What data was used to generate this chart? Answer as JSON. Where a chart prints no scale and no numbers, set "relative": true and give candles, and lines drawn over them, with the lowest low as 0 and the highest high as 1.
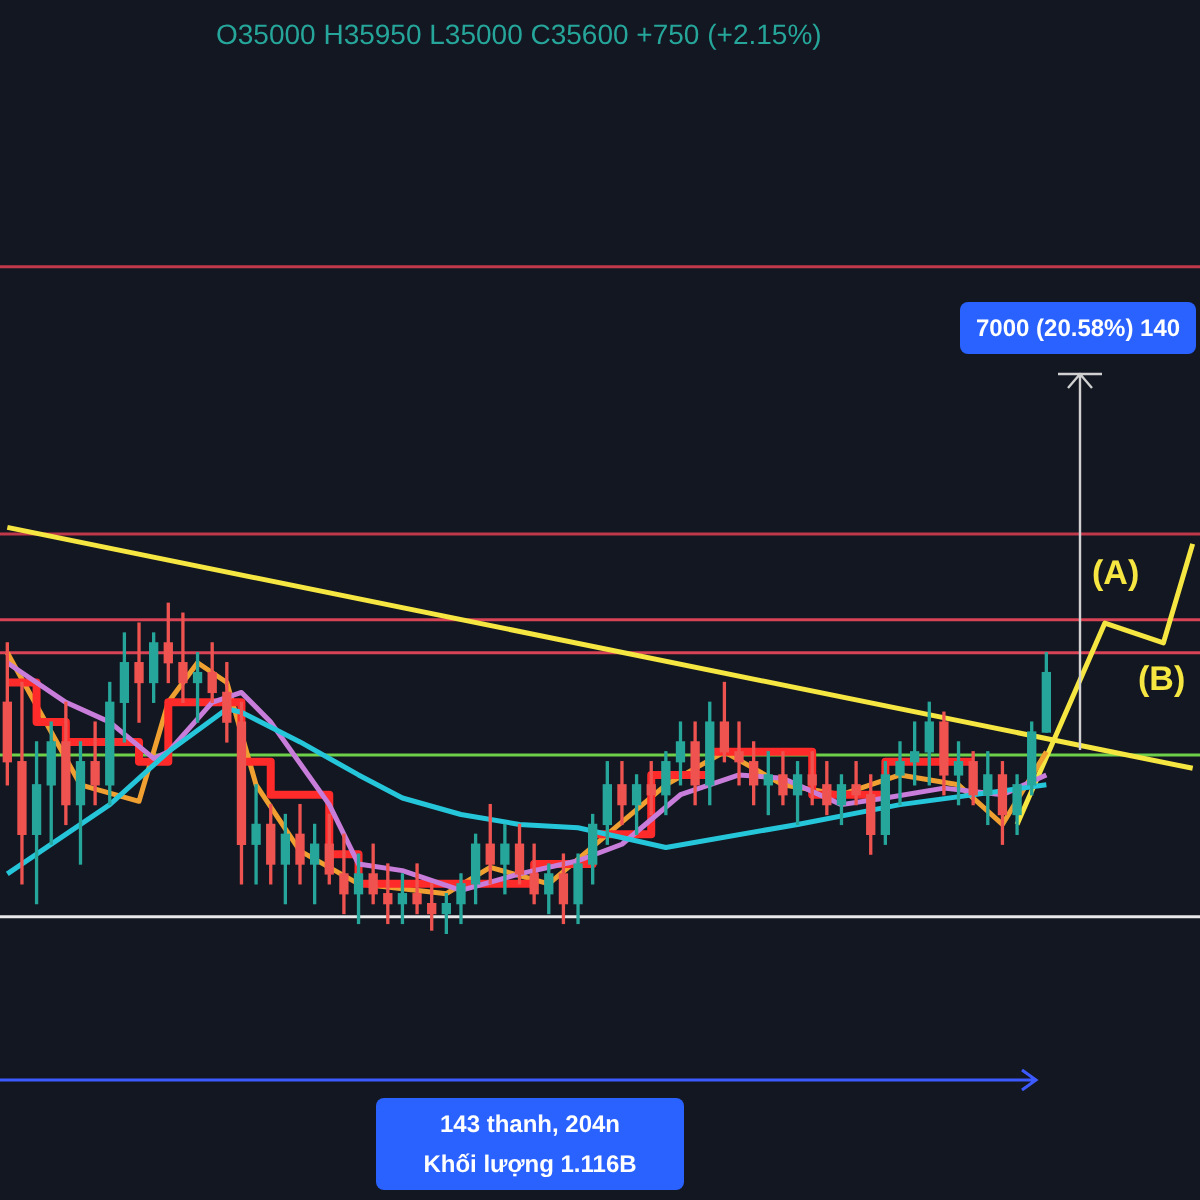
{
  "chart_data": {
    "type": "candlestick",
    "relative": true,
    "tick_labels": false,
    "legend": false,
    "categories": [
      null,
      null,
      null,
      null,
      null,
      null,
      null,
      null,
      null,
      null,
      null,
      null,
      null,
      null,
      null,
      null,
      null,
      null,
      null,
      null,
      null,
      null,
      null,
      null,
      null,
      null,
      null,
      null,
      null,
      null,
      null,
      null,
      null,
      null,
      null,
      null,
      null,
      null,
      null,
      null,
      null,
      null,
      null,
      null,
      null,
      null,
      null,
      null,
      null,
      null,
      null,
      null,
      null,
      null,
      null,
      null,
      null,
      null,
      null,
      null,
      null,
      null,
      null,
      null,
      null,
      null,
      null,
      null,
      null,
      null,
      null,
      null,
      null,
      null,
      null,
      null,
      null,
      null,
      null,
      null,
      null,
      null
    ],
    "ohlc": [
      [
        0.7,
        0.88,
        0.45,
        0.52
      ],
      [
        0.52,
        0.76,
        0.15,
        0.3
      ],
      [
        0.3,
        0.58,
        0.09,
        0.45
      ],
      [
        0.45,
        0.64,
        0.27,
        0.58
      ],
      [
        0.58,
        0.7,
        0.33,
        0.39
      ],
      [
        0.39,
        0.58,
        0.21,
        0.52
      ],
      [
        0.52,
        0.64,
        0.39,
        0.45
      ],
      [
        0.45,
        0.76,
        0.39,
        0.7
      ],
      [
        0.7,
        0.91,
        0.58,
        0.82
      ],
      [
        0.82,
        0.94,
        0.64,
        0.76
      ],
      [
        0.76,
        0.91,
        0.7,
        0.88
      ],
      [
        0.88,
        1.0,
        0.76,
        0.82
      ],
      [
        0.82,
        0.97,
        0.7,
        0.76
      ],
      [
        0.76,
        0.85,
        0.64,
        0.79
      ],
      [
        0.79,
        0.88,
        0.7,
        0.73
      ],
      [
        0.73,
        0.82,
        0.58,
        0.64
      ],
      [
        0.64,
        0.7,
        0.15,
        0.27
      ],
      [
        0.27,
        0.45,
        0.15,
        0.33
      ],
      [
        0.33,
        0.39,
        0.15,
        0.21
      ],
      [
        0.21,
        0.36,
        0.09,
        0.3
      ],
      [
        0.3,
        0.39,
        0.15,
        0.21
      ],
      [
        0.21,
        0.33,
        0.09,
        0.27
      ],
      [
        0.27,
        0.36,
        0.15,
        0.18
      ],
      [
        0.18,
        0.3,
        0.06,
        0.12
      ],
      [
        0.12,
        0.24,
        0.03,
        0.18
      ],
      [
        0.18,
        0.27,
        0.09,
        0.12
      ],
      [
        0.12,
        0.21,
        0.03,
        0.09
      ],
      [
        0.09,
        0.18,
        0.03,
        0.12
      ],
      [
        0.12,
        0.21,
        0.06,
        0.09
      ],
      [
        0.09,
        0.15,
        0.01,
        0.06
      ],
      [
        0.06,
        0.12,
        0.0,
        0.09
      ],
      [
        0.09,
        0.18,
        0.03,
        0.15
      ],
      [
        0.15,
        0.3,
        0.09,
        0.27
      ],
      [
        0.27,
        0.39,
        0.15,
        0.21
      ],
      [
        0.21,
        0.33,
        0.12,
        0.27
      ],
      [
        0.27,
        0.33,
        0.15,
        0.18
      ],
      [
        0.18,
        0.27,
        0.09,
        0.12
      ],
      [
        0.12,
        0.21,
        0.06,
        0.18
      ],
      [
        0.18,
        0.24,
        0.03,
        0.09
      ],
      [
        0.09,
        0.24,
        0.03,
        0.21
      ],
      [
        0.21,
        0.36,
        0.15,
        0.33
      ],
      [
        0.33,
        0.52,
        0.27,
        0.45
      ],
      [
        0.45,
        0.52,
        0.33,
        0.39
      ],
      [
        0.39,
        0.48,
        0.3,
        0.45
      ],
      [
        0.45,
        0.52,
        0.36,
        0.42
      ],
      [
        0.42,
        0.55,
        0.36,
        0.52
      ],
      [
        0.52,
        0.64,
        0.45,
        0.58
      ],
      [
        0.58,
        0.64,
        0.39,
        0.45
      ],
      [
        0.45,
        0.7,
        0.39,
        0.64
      ],
      [
        0.64,
        0.76,
        0.52,
        0.55
      ],
      [
        0.55,
        0.64,
        0.45,
        0.52
      ],
      [
        0.52,
        0.58,
        0.39,
        0.45
      ],
      [
        0.45,
        0.55,
        0.36,
        0.48
      ],
      [
        0.48,
        0.55,
        0.39,
        0.42
      ],
      [
        0.42,
        0.52,
        0.33,
        0.48
      ],
      [
        0.48,
        0.55,
        0.39,
        0.45
      ],
      [
        0.45,
        0.52,
        0.36,
        0.39
      ],
      [
        0.39,
        0.48,
        0.33,
        0.45
      ],
      [
        0.45,
        0.52,
        0.39,
        0.42
      ],
      [
        0.42,
        0.48,
        0.24,
        0.3
      ],
      [
        0.3,
        0.52,
        0.27,
        0.48
      ],
      [
        0.48,
        0.58,
        0.39,
        0.52
      ],
      [
        0.52,
        0.64,
        0.45,
        0.55
      ],
      [
        0.55,
        0.7,
        0.45,
        0.64
      ],
      [
        0.64,
        0.67,
        0.42,
        0.48
      ],
      [
        0.48,
        0.58,
        0.39,
        0.52
      ],
      [
        0.52,
        0.55,
        0.39,
        0.42
      ],
      [
        0.42,
        0.55,
        0.33,
        0.48
      ],
      [
        0.48,
        0.52,
        0.27,
        0.36
      ],
      [
        0.36,
        0.48,
        0.3,
        0.45
      ],
      [
        0.45,
        0.64,
        0.42,
        0.61
      ],
      [
        0.61,
        0.85,
        0.61,
        0.79
      ],
      null,
      null,
      null,
      null,
      null,
      null,
      null,
      null,
      null,
      null
    ],
    "series": [
      {
        "type": "line",
        "color": "#26c6da",
        "values": [
          0.18,
          null,
          null,
          null,
          null,
          null,
          null,
          0.39,
          null,
          null,
          null,
          0.55,
          null,
          null,
          null,
          0.68,
          0.67,
          null,
          null,
          null,
          0.58,
          null,
          null,
          null,
          0.48,
          null,
          null,
          0.41,
          null,
          null,
          null,
          0.36,
          null,
          null,
          null,
          0.33,
          null,
          null,
          null,
          0.32,
          null,
          null,
          null,
          null,
          null,
          0.26,
          null,
          null,
          null,
          null,
          null,
          null,
          null,
          null,
          0.33,
          null,
          null,
          null,
          null,
          null,
          null,
          0.39,
          null,
          null,
          null,
          null,
          null,
          null,
          null,
          null,
          null,
          0.45,
          null,
          null,
          null,
          null,
          null,
          null,
          null,
          null,
          null,
          null
        ]
      },
      {
        "type": "line",
        "color": "#c77dd9",
        "values": [
          0.82,
          null,
          null,
          null,
          0.7,
          null,
          null,
          0.64,
          null,
          null,
          0.53,
          0.55,
          null,
          null,
          0.7,
          null,
          0.73,
          null,
          0.64,
          null,
          null,
          null,
          0.39,
          null,
          0.21,
          null,
          null,
          0.19,
          null,
          null,
          null,
          0.13,
          null,
          null,
          null,
          0.18,
          null,
          null,
          null,
          0.22,
          null,
          null,
          0.27,
          null,
          null,
          null,
          0.42,
          null,
          null,
          null,
          0.48,
          null,
          null,
          0.47,
          null,
          null,
          null,
          0.39,
          null,
          null,
          0.41,
          null,
          null,
          null,
          0.44,
          null,
          null,
          null,
          0.42,
          null,
          null,
          0.48,
          null,
          null,
          null,
          null,
          null,
          null,
          null,
          null,
          null,
          null
        ]
      },
      {
        "type": "step",
        "color": "#ff2a2a",
        "values": [
          0.76,
          null,
          0.64,
          null,
          0.58,
          null,
          null,
          null,
          null,
          0.52,
          null,
          0.7,
          null,
          null,
          null,
          0.7,
          0.52,
          null,
          0.42,
          null,
          null,
          null,
          0.24,
          null,
          0.15,
          null,
          null,
          null,
          null,
          null,
          0.15,
          null,
          null,
          0.15,
          null,
          null,
          0.21,
          null,
          null,
          null,
          0.3,
          null,
          null,
          null,
          0.48,
          null,
          null,
          null,
          0.55,
          null,
          null,
          null,
          null,
          null,
          null,
          0.42,
          null,
          null,
          null,
          null,
          0.52,
          null,
          null,
          null,
          null,
          null,
          0.52,
          null,
          null,
          null,
          null,
          null,
          null,
          null,
          null,
          null,
          null,
          null,
          null,
          null,
          null,
          null
        ]
      },
      {
        "type": "line",
        "color": "#f0a030",
        "values": [
          0.85,
          null,
          null,
          null,
          null,
          0.45,
          null,
          null,
          null,
          0.4,
          null,
          0.7,
          null,
          0.82,
          null,
          0.76,
          null,
          0.45,
          null,
          null,
          0.25,
          null,
          null,
          null,
          0.15,
          null,
          null,
          null,
          null,
          null,
          0.12,
          null,
          null,
          0.2,
          null,
          null,
          null,
          0.15,
          null,
          null,
          null,
          0.3,
          null,
          null,
          null,
          0.45,
          null,
          null,
          null,
          0.55,
          null,
          null,
          null,
          0.45,
          null,
          null,
          null,
          0.42,
          null,
          null,
          null,
          0.48,
          null,
          null,
          null,
          0.45,
          null,
          null,
          0.33,
          null,
          null,
          0.55,
          null,
          null,
          null,
          null,
          null,
          null,
          null,
          null,
          null,
          null
        ]
      },
      {
        "type": "line",
        "color": "#f5e642",
        "values": [
          1.23,
          null,
          null,
          null,
          null,
          null,
          null,
          null,
          null,
          null,
          null,
          null,
          null,
          null,
          null,
          null,
          null,
          null,
          null,
          null,
          null,
          null,
          null,
          null,
          null,
          null,
          null,
          null,
          null,
          null,
          null,
          null,
          null,
          null,
          null,
          null,
          null,
          null,
          null,
          null,
          null,
          null,
          null,
          null,
          null,
          null,
          null,
          null,
          null,
          null,
          null,
          null,
          null,
          null,
          null,
          null,
          null,
          null,
          null,
          null,
          null,
          null,
          null,
          null,
          null,
          null,
          null,
          null,
          null,
          null,
          null,
          null,
          null,
          null,
          null,
          null,
          null,
          null,
          null,
          null,
          null,
          0.5
        ]
      },
      {
        "type": "line",
        "color": "#f5e642",
        "values": [
          null,
          null,
          null,
          null,
          null,
          null,
          null,
          null,
          null,
          null,
          null,
          null,
          null,
          null,
          null,
          null,
          null,
          null,
          null,
          null,
          null,
          null,
          null,
          null,
          null,
          null,
          null,
          null,
          null,
          null,
          null,
          null,
          null,
          null,
          null,
          null,
          null,
          null,
          null,
          null,
          null,
          null,
          null,
          null,
          null,
          null,
          null,
          null,
          null,
          null,
          null,
          null,
          null,
          null,
          null,
          null,
          null,
          null,
          null,
          null,
          null,
          null,
          null,
          null,
          null,
          null,
          null,
          null,
          null,
          0.33,
          null,
          null,
          null,
          null,
          null,
          0.94,
          null,
          null,
          null,
          0.88,
          null,
          1.18
        ]
      }
    ],
    "ref_lines": [
      {
        "axis": "y",
        "value": 2.02,
        "color": "#c0394b"
      },
      {
        "axis": "y",
        "value": 1.21,
        "color": "#c0394b"
      },
      {
        "axis": "y",
        "value": 0.95,
        "color": "#d84356"
      },
      {
        "axis": "y",
        "value": 0.85,
        "color": "#d84356"
      },
      {
        "axis": "y",
        "value": 0.54,
        "color": "#6fd04a"
      },
      {
        "axis": "y",
        "value": 0.05,
        "color": "#e8e8e8"
      }
    ],
    "annotations": [
      "O35000 H35950 L35000 C35600 +750 (+2.15%)",
      "(A)",
      "(B)",
      "7000 (20.58%) 140",
      "143 thanh, 204n",
      "Khối lượng 1.116B"
    ]
  }
}
